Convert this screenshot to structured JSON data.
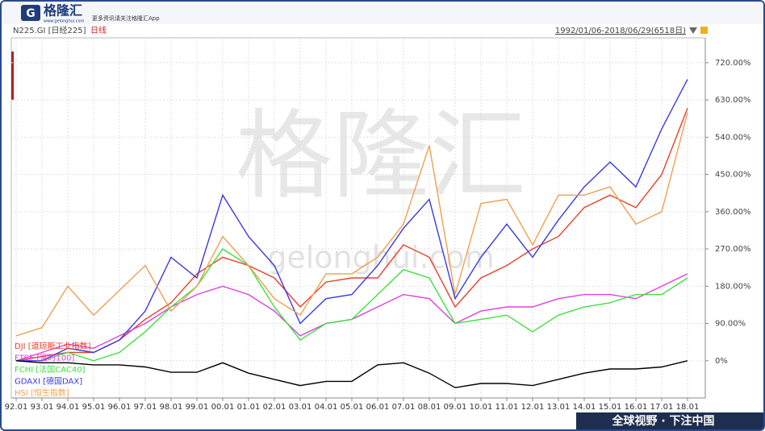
{
  "header": {
    "logo": "格隆汇",
    "site": "www.gelonghui.com",
    "slogan_top": "更多资讯请关注格隆汇App",
    "slogan_bottom": "全球视野 · 下注中国",
    "watermark": "格隆汇",
    "watermark_url": "gelonghui.com"
  },
  "chart_data": {
    "type": "line",
    "title": "N225.GI [日经225]",
    "subtitle": "日线",
    "date_range": "1992/01/06-2018/06/29(6518日)",
    "categories": [
      "92.01",
      "93.01",
      "94.01",
      "95.01",
      "96.01",
      "97.01",
      "98.01",
      "99.01",
      "00.01",
      "01.01",
      "02.01",
      "03.01",
      "04.01",
      "05.01",
      "06.01",
      "07.01",
      "08.01",
      "09.01",
      "10.01",
      "11.01",
      "12.01",
      "13.01",
      "14.01",
      "15.01",
      "16.01",
      "17.01",
      "18.01"
    ],
    "ylim": [
      -90,
      780
    ],
    "yticks": [
      {
        "value": 0,
        "label": "0%"
      },
      {
        "value": 90,
        "label": "90.00%"
      },
      {
        "value": 180,
        "label": "180.00%"
      },
      {
        "value": 270,
        "label": "270.00%"
      },
      {
        "value": 360,
        "label": "360.00%"
      },
      {
        "value": 450,
        "label": "450.00%"
      },
      {
        "value": 540,
        "label": "540.00%"
      },
      {
        "value": 630,
        "label": "630.00%"
      },
      {
        "value": 720,
        "label": "720.00%"
      }
    ],
    "grid": true,
    "series": [
      {
        "name": "DJI [道琼斯工业指数]",
        "color": "#e8402a",
        "values": [
          0,
          10,
          20,
          20,
          50,
          100,
          140,
          210,
          250,
          230,
          200,
          130,
          190,
          200,
          200,
          280,
          250,
          130,
          200,
          230,
          270,
          300,
          370,
          400,
          370,
          450,
          610
        ]
      },
      {
        "name": "FTSE [富时100]",
        "color": "#e040e0",
        "values": [
          0,
          20,
          40,
          30,
          60,
          90,
          130,
          160,
          180,
          160,
          120,
          60,
          90,
          100,
          130,
          160,
          150,
          90,
          120,
          130,
          130,
          150,
          160,
          160,
          150,
          180,
          210
        ]
      },
      {
        "name": "FCHI [法国CAC40]",
        "color": "#40e040",
        "values": [
          0,
          0,
          20,
          0,
          20,
          70,
          130,
          180,
          270,
          230,
          130,
          50,
          90,
          100,
          160,
          220,
          200,
          90,
          100,
          110,
          70,
          110,
          130,
          140,
          160,
          160,
          200
        ]
      },
      {
        "name": "GDAXI [德国DAX]",
        "color": "#3a3ae0",
        "values": [
          0,
          0,
          30,
          20,
          50,
          120,
          250,
          200,
          400,
          300,
          230,
          90,
          150,
          160,
          230,
          320,
          390,
          150,
          250,
          330,
          250,
          340,
          420,
          480,
          420,
          560,
          680
        ]
      },
      {
        "name": "HSI [恒生指数]",
        "color": "#f0a050",
        "values": [
          60,
          80,
          180,
          110,
          170,
          230,
          120,
          180,
          300,
          230,
          150,
          110,
          210,
          210,
          250,
          330,
          520,
          160,
          380,
          390,
          280,
          400,
          400,
          420,
          330,
          360,
          600
        ]
      },
      {
        "name": "N225 [日经225]",
        "color": "#000000",
        "values": [
          0,
          -5,
          -5,
          -10,
          -10,
          -15,
          -28,
          -28,
          -5,
          -30,
          -45,
          -60,
          -50,
          -50,
          -10,
          -5,
          -30,
          -65,
          -55,
          -55,
          -60,
          -45,
          -30,
          -20,
          -20,
          -15,
          0
        ]
      }
    ]
  }
}
